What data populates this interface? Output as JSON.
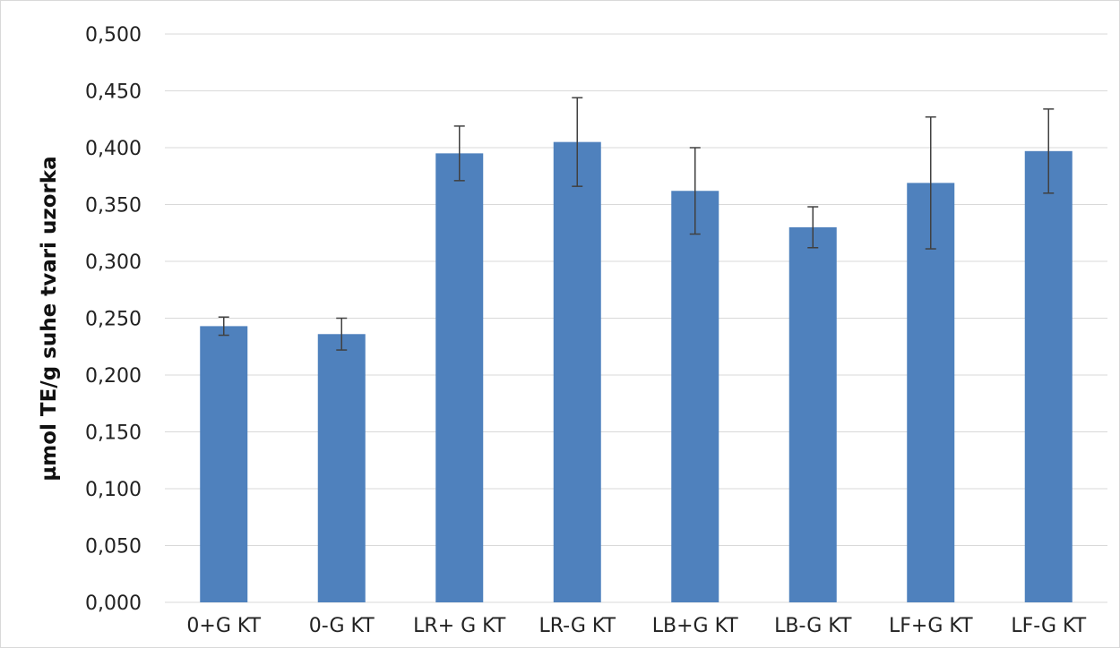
{
  "chart_data": {
    "type": "bar",
    "ylabel": "µmol TE/g suhe tvari uzorka",
    "xlabel": "",
    "ylim": [
      0,
      0.5
    ],
    "yticks": [
      0.0,
      0.05,
      0.1,
      0.15,
      0.2,
      0.25,
      0.3,
      0.35,
      0.4,
      0.45,
      0.5
    ],
    "ytick_labels": [
      "0,000",
      "0,050",
      "0,100",
      "0,150",
      "0,200",
      "0,250",
      "0,300",
      "0,350",
      "0,400",
      "0,450",
      "0,500"
    ],
    "grid": true,
    "legend": "none",
    "categories": [
      "0+G KT",
      "0-G KT",
      "LR+ G KT",
      "LR-G KT",
      "LB+G KT",
      "LB-G KT",
      "LF+G KT",
      "LF-G KT"
    ],
    "series": [
      {
        "values": [
          0.243,
          0.236,
          0.395,
          0.405,
          0.362,
          0.33,
          0.369,
          0.397
        ],
        "errors": [
          0.008,
          0.014,
          0.024,
          0.039,
          0.038,
          0.018,
          0.058,
          0.037
        ],
        "color": "#4F81BD"
      }
    ],
    "colors": {
      "bar": "#4F81BD",
      "grid": "#D9D9D9",
      "error_bar": "#404040",
      "border": "#D9D9D9"
    }
  }
}
